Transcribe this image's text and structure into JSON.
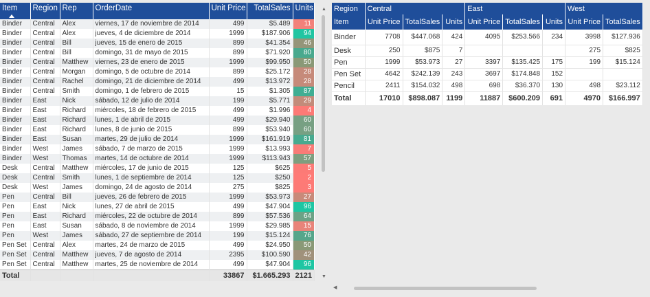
{
  "left_table": {
    "headers": {
      "item": "Item",
      "region": "Region",
      "rep": "Rep",
      "orderdate": "OrderDate",
      "unit_price": "Unit Price",
      "total_sales": "TotalSales",
      "units": "Units"
    },
    "sort_indicator": "sort-ascending-icon",
    "rows": [
      {
        "item": "Binder",
        "region": "Central",
        "rep": "Alex",
        "date": "viernes, 17 de noviembre de 2014",
        "price": "499",
        "sales": "$5.489",
        "units": "11",
        "color": "#f2817a"
      },
      {
        "item": "Binder",
        "region": "Central",
        "rep": "Alex",
        "date": "jueves, 4 de diciembre de 2014",
        "price": "1999",
        "sales": "$187.906",
        "units": "94",
        "color": "#21c5a2"
      },
      {
        "item": "Binder",
        "region": "Central",
        "rep": "Bill",
        "date": "jueves, 15 de enero de 2015",
        "price": "899",
        "sales": "$41.354",
        "units": "46",
        "color": "#959579"
      },
      {
        "item": "Binder",
        "region": "Central",
        "rep": "Bill",
        "date": "domingo, 31 de mayo de 2015",
        "price": "899",
        "sales": "$71.920",
        "units": "80",
        "color": "#49a98e"
      },
      {
        "item": "Binder",
        "region": "Central",
        "rep": "Matthew",
        "date": "viernes, 23 de enero de 2015",
        "price": "1999",
        "sales": "$99.950",
        "units": "50",
        "color": "#8a9977"
      },
      {
        "item": "Binder",
        "region": "Central",
        "rep": "Morgan",
        "date": "domingo, 5 de octubre de 2014",
        "price": "899",
        "sales": "$25.172",
        "units": "28",
        "color": "#c68a7a"
      },
      {
        "item": "Binder",
        "region": "Central",
        "rep": "Rachel",
        "date": "domingo, 21 de diciembre de 2014",
        "price": "499",
        "sales": "$13.972",
        "units": "28",
        "color": "#c68a7a"
      },
      {
        "item": "Binder",
        "region": "Central",
        "rep": "Smith",
        "date": "domingo, 1 de febrero de 2015",
        "price": "15",
        "sales": "$1.305",
        "units": "87",
        "color": "#3fae93"
      },
      {
        "item": "Binder",
        "region": "East",
        "rep": "Nick",
        "date": "sábado, 12 de julio de 2014",
        "price": "199",
        "sales": "$5.771",
        "units": "29",
        "color": "#c38b7a"
      },
      {
        "item": "Binder",
        "region": "East",
        "rep": "Richard",
        "date": "miércoles, 18 de febrero de 2015",
        "price": "499",
        "sales": "$1.996",
        "units": "4",
        "color": "#fd7a76"
      },
      {
        "item": "Binder",
        "region": "East",
        "rep": "Richard",
        "date": "lunes, 1 de abril de 2015",
        "price": "499",
        "sales": "$29.940",
        "units": "60",
        "color": "#77a083"
      },
      {
        "item": "Binder",
        "region": "East",
        "rep": "Richard",
        "date": "lunes, 8 de junio de 2015",
        "price": "899",
        "sales": "$53.940",
        "units": "60",
        "color": "#77a083"
      },
      {
        "item": "Binder",
        "region": "East",
        "rep": "Susan",
        "date": "martes, 29 de julio de 2014",
        "price": "1999",
        "sales": "$161.919",
        "units": "81",
        "color": "#47aa8f"
      },
      {
        "item": "Binder",
        "region": "West",
        "rep": "James",
        "date": "sábado, 7 de marzo de 2015",
        "price": "1999",
        "sales": "$13.993",
        "units": "7",
        "color": "#f97b77"
      },
      {
        "item": "Binder",
        "region": "West",
        "rep": "Thomas",
        "date": "martes, 14 de octubre de 2014",
        "price": "1999",
        "sales": "$113.943",
        "units": "57",
        "color": "#7d9e7f"
      },
      {
        "item": "Desk",
        "region": "Central",
        "rep": "Matthew",
        "date": "miércoles, 17 de junio de 2015",
        "price": "125",
        "sales": "$625",
        "units": "5",
        "color": "#fc7a76"
      },
      {
        "item": "Desk",
        "region": "Central",
        "rep": "Smith",
        "date": "lunes, 1 de septiembre de 2014",
        "price": "125",
        "sales": "$250",
        "units": "2",
        "color": "#fe7a76"
      },
      {
        "item": "Desk",
        "region": "West",
        "rep": "James",
        "date": "domingo, 24 de agosto de 2014",
        "price": "275",
        "sales": "$825",
        "units": "3",
        "color": "#fd7a76"
      },
      {
        "item": "Pen",
        "region": "Central",
        "rep": "Bill",
        "date": "jueves, 26 de febrero de 2015",
        "price": "1999",
        "sales": "$53.973",
        "units": "27",
        "color": "#c88a7a"
      },
      {
        "item": "Pen",
        "region": "East",
        "rep": "Nick",
        "date": "lunes, 27 de abril de 2015",
        "price": "499",
        "sales": "$47.904",
        "units": "96",
        "color": "#1ec6a3"
      },
      {
        "item": "Pen",
        "region": "East",
        "rep": "Richard",
        "date": "miércoles, 22 de octubre de 2014",
        "price": "899",
        "sales": "$57.536",
        "units": "64",
        "color": "#6ca286"
      },
      {
        "item": "Pen",
        "region": "East",
        "rep": "Susan",
        "date": "sábado, 8 de noviembre de 2014",
        "price": "1999",
        "sales": "$29.985",
        "units": "15",
        "color": "#e9847a"
      },
      {
        "item": "Pen",
        "region": "West",
        "rep": "James",
        "date": "sábado, 27 de septiembre de 2014",
        "price": "199",
        "sales": "$15.124",
        "units": "76",
        "color": "#55a68b"
      },
      {
        "item": "Pen Set",
        "region": "Central",
        "rep": "Alex",
        "date": "martes, 24 de marzo de 2015",
        "price": "499",
        "sales": "$24.950",
        "units": "50",
        "color": "#8a9977"
      },
      {
        "item": "Pen Set",
        "region": "Central",
        "rep": "Matthew",
        "date": "jueves, 7 de agosto de 2014",
        "price": "2395",
        "sales": "$100.590",
        "units": "42",
        "color": "#a0917b"
      },
      {
        "item": "Pen Set",
        "region": "Central",
        "rep": "Matthew",
        "date": "martes, 25 de noviembre de 2014",
        "price": "499",
        "sales": "$47.904",
        "units": "96",
        "color": "#1ec6a3"
      }
    ],
    "total": {
      "label": "Total",
      "price": "33867",
      "sales": "$1.665.293",
      "units": "2121"
    }
  },
  "matrix": {
    "header_region": "Region",
    "header_item": "Item",
    "regions": [
      "Central",
      "East",
      "West"
    ],
    "measures": [
      "Unit Price",
      "TotalSales",
      "Units"
    ],
    "rows": [
      {
        "item": "Binder",
        "cells": [
          "7708",
          "$447.068",
          "424",
          "4095",
          "$253.566",
          "234",
          "3998",
          "$127.936"
        ]
      },
      {
        "item": "Desk",
        "cells": [
          "250",
          "$875",
          "7",
          "",
          "",
          "",
          "275",
          "$825"
        ]
      },
      {
        "item": "Pen",
        "cells": [
          "1999",
          "$53.973",
          "27",
          "3397",
          "$135.425",
          "175",
          "199",
          "$15.124"
        ]
      },
      {
        "item": "Pen Set",
        "cells": [
          "4642",
          "$242.139",
          "243",
          "3697",
          "$174.848",
          "152",
          "",
          ""
        ]
      },
      {
        "item": "Pencil",
        "cells": [
          "2411",
          "$154.032",
          "498",
          "698",
          "$36.370",
          "130",
          "498",
          "$23.112"
        ]
      }
    ],
    "total": {
      "label": "Total",
      "cells": [
        "17010",
        "$898.087",
        "1199",
        "11887",
        "$600.209",
        "691",
        "4970",
        "$166.997"
      ]
    }
  },
  "scrollbars": {
    "up_arrow": "chevron-up-icon",
    "down_arrow": "chevron-down-icon",
    "left_arrow": "chevron-left-icon"
  }
}
